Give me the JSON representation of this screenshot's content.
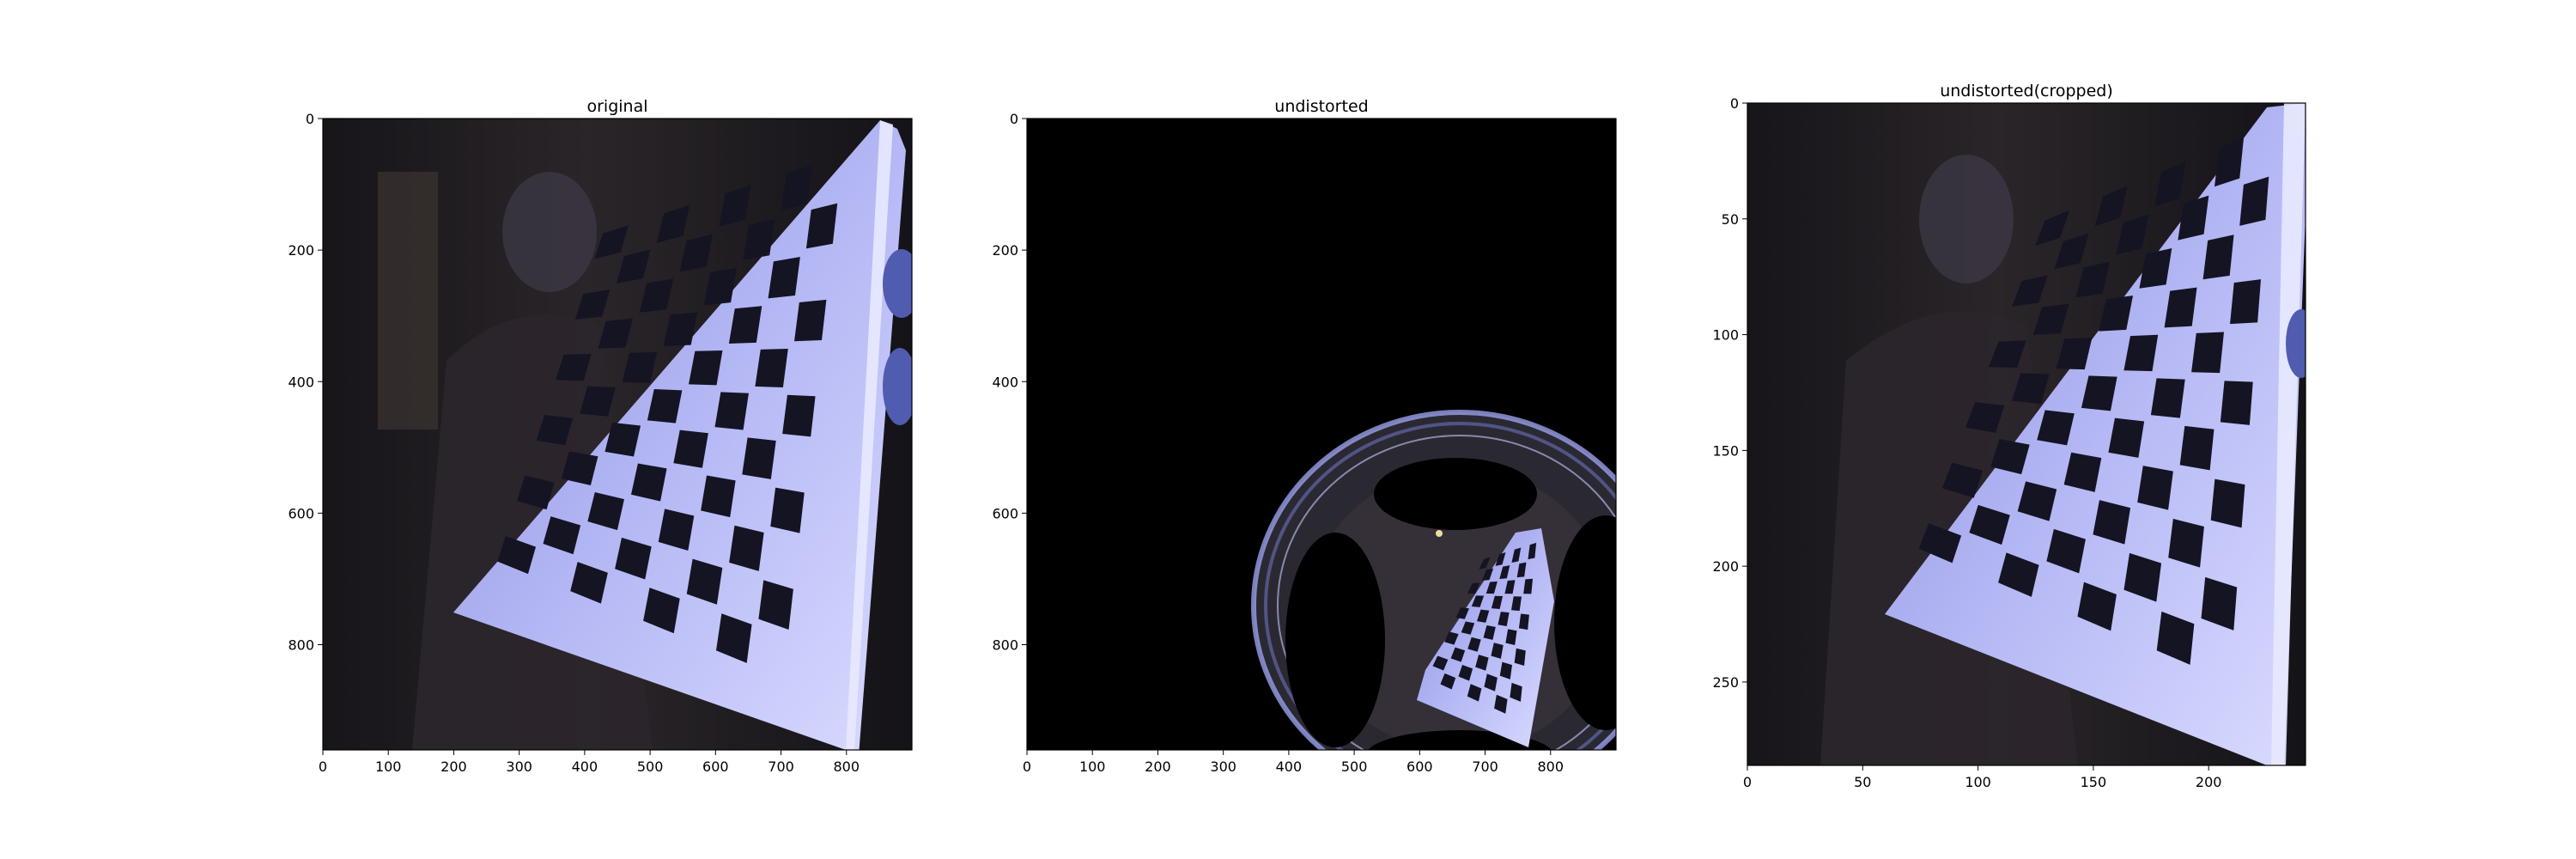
{
  "chart_data": [
    {
      "type": "image",
      "title": "original",
      "xticks": [
        0,
        100,
        200,
        300,
        400,
        500,
        600,
        700,
        800
      ],
      "yticks": [
        0,
        200,
        400,
        600,
        800
      ],
      "xlim": [
        0,
        900
      ],
      "ylim": [
        960,
        0
      ],
      "content": "fisheye-checkerboard"
    },
    {
      "type": "image",
      "title": "undistorted",
      "xticks": [
        0,
        100,
        200,
        300,
        400,
        500,
        600,
        700,
        800
      ],
      "yticks": [
        0,
        200,
        400,
        600,
        800
      ],
      "xlim": [
        0,
        900
      ],
      "ylim": [
        960,
        0
      ],
      "content": "undistorted-mostly-black"
    },
    {
      "type": "image",
      "title": "undistorted(cropped)",
      "xticks": [
        0,
        50,
        100,
        150,
        200
      ],
      "yticks": [
        0,
        50,
        100,
        150,
        200,
        250
      ],
      "xlim": [
        0,
        242
      ],
      "ylim": [
        286,
        0
      ],
      "content": "cropped-checkerboard"
    }
  ],
  "colors": {
    "board": "#a6a9ee",
    "board_shadow": "#6e72c4",
    "square": "#141423",
    "background": "#1d1a1e",
    "black": "#000000"
  }
}
